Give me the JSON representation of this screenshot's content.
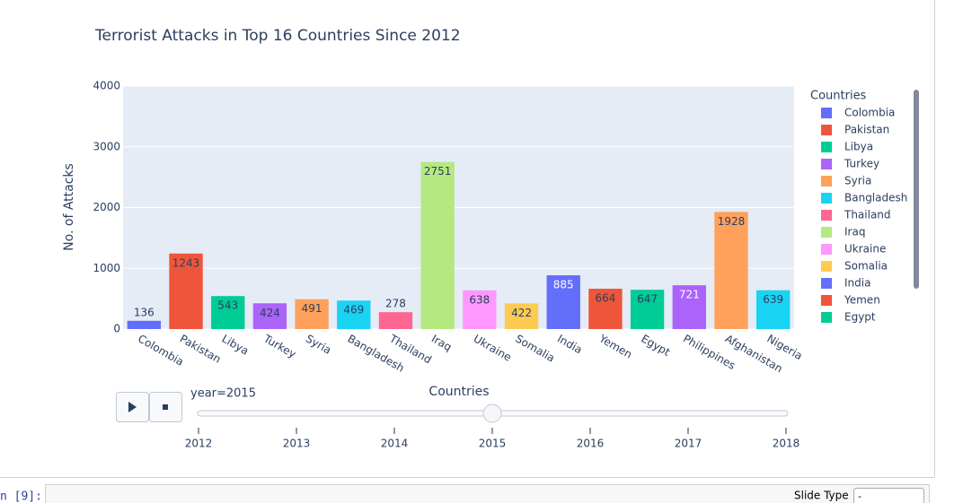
{
  "chart_data": {
    "type": "bar",
    "title": "Terrorist Attacks in Top 16 Countries Since 2012",
    "x_label": "Countries",
    "y_label": "No. of Attacks",
    "categories": [
      "Colombia",
      "Pakistan",
      "Libya",
      "Turkey",
      "Syria",
      "Bangladesh",
      "Thailand",
      "Iraq",
      "Ukraine",
      "Somalia",
      "India",
      "Yemen",
      "Egypt",
      "Philippines",
      "Afghanistan",
      "Nigeria"
    ],
    "values": [
      136,
      1243,
      543,
      424,
      491,
      469,
      278,
      2751,
      638,
      422,
      885,
      664,
      647,
      721,
      1928,
      639
    ],
    "colors": [
      "#636efa",
      "#ef553b",
      "#00cc96",
      "#ab63fa",
      "#ffa15a",
      "#19d3f3",
      "#ff6692",
      "#b6e880",
      "#ff97ff",
      "#fecb52",
      "#636efa",
      "#ef553b",
      "#00cc96",
      "#ab63fa",
      "#ffa15a",
      "#19d3f3"
    ],
    "value_label_colors": [
      "#2a3f5f",
      "#2a3f5f",
      "#2a3f5f",
      "#2a3f5f",
      "#2a3f5f",
      "#2a3f5f",
      "#2a3f5f",
      "#2a3f5f",
      "#2a3f5f",
      "#2a3f5f",
      "#ffffff",
      "#2a3f5f",
      "#2a3f5f",
      "#ffffff",
      "#2a3f5f",
      "#2a3f5f"
    ],
    "ylim": [
      0,
      4000
    ],
    "yticks": [
      0,
      1000,
      2000,
      3000,
      4000
    ],
    "grid": true,
    "legend": {
      "title": "Countries",
      "items": [
        {
          "name": "Colombia",
          "color": "#636efa"
        },
        {
          "name": "Pakistan",
          "color": "#ef553b"
        },
        {
          "name": "Libya",
          "color": "#00cc96"
        },
        {
          "name": "Turkey",
          "color": "#ab63fa"
        },
        {
          "name": "Syria",
          "color": "#ffa15a"
        },
        {
          "name": "Bangladesh",
          "color": "#19d3f3"
        },
        {
          "name": "Thailand",
          "color": "#ff6692"
        },
        {
          "name": "Iraq",
          "color": "#b6e880"
        },
        {
          "name": "Ukraine",
          "color": "#ff97ff"
        },
        {
          "name": "Somalia",
          "color": "#fecb52"
        },
        {
          "name": "India",
          "color": "#636efa"
        },
        {
          "name": "Yemen",
          "color": "#ef553b"
        },
        {
          "name": "Egypt",
          "color": "#00cc96"
        }
      ]
    },
    "slider": {
      "current_label": "year=2015",
      "value": 2015,
      "xlim": [
        2012,
        2018
      ],
      "xticks": [
        2012,
        2013,
        2014,
        2015,
        2016,
        2017,
        2018
      ]
    }
  },
  "notebook": {
    "prompt": "n [9]:",
    "slide_type_label": "Slide Type",
    "slide_type_value": "-"
  }
}
